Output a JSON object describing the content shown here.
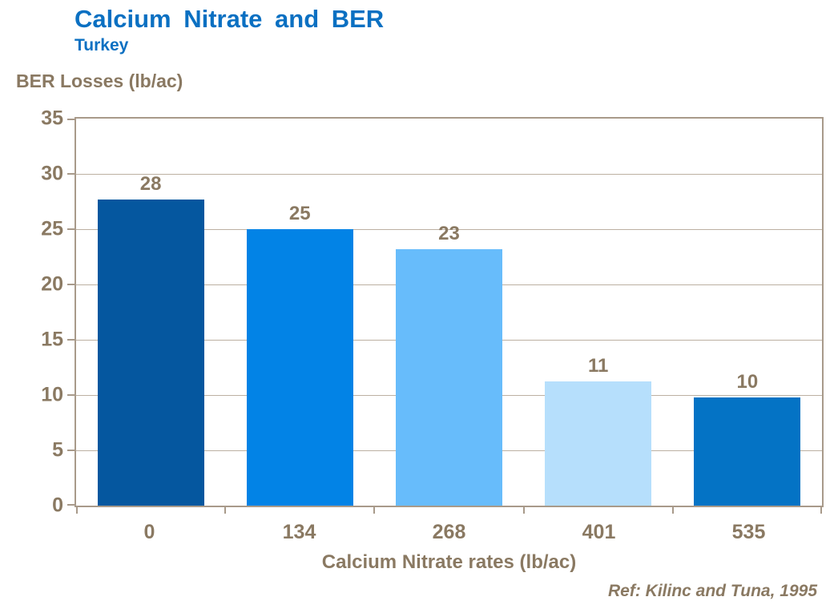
{
  "header": {
    "title": "Calcium Nitrate and BER",
    "subtitle": "Turkey"
  },
  "chart_data": {
    "type": "bar",
    "title": "Calcium Nitrate and BER",
    "subtitle": "Turkey",
    "categories": [
      "0",
      "134",
      "268",
      "401",
      "535"
    ],
    "values": [
      28,
      25,
      23,
      11,
      10
    ],
    "draw_values": [
      27.7,
      25.0,
      23.2,
      11.2,
      9.8
    ],
    "bar_colors": [
      "#05579f",
      "#0283e6",
      "#67bcfb",
      "#b6dffc",
      "#0473c5"
    ],
    "xlabel": "Calcium Nitrate rates (lb/ac)",
    "ylabel": "BER Losses (lb/ac)",
    "ylim": [
      0,
      35
    ],
    "yticks": [
      0,
      5,
      10,
      15,
      20,
      25,
      30,
      35
    ],
    "grid": true,
    "legend": false,
    "data_labels": true
  },
  "footer": {
    "reference": "Ref: Kilinc and Tuna, 1995"
  },
  "colors": {
    "title_blue": "#0b70c2",
    "text_brown": "#8a7962",
    "axis_tan": "#a89a8a",
    "gridline": "#bcb0a2",
    "background": "#ffffff"
  }
}
